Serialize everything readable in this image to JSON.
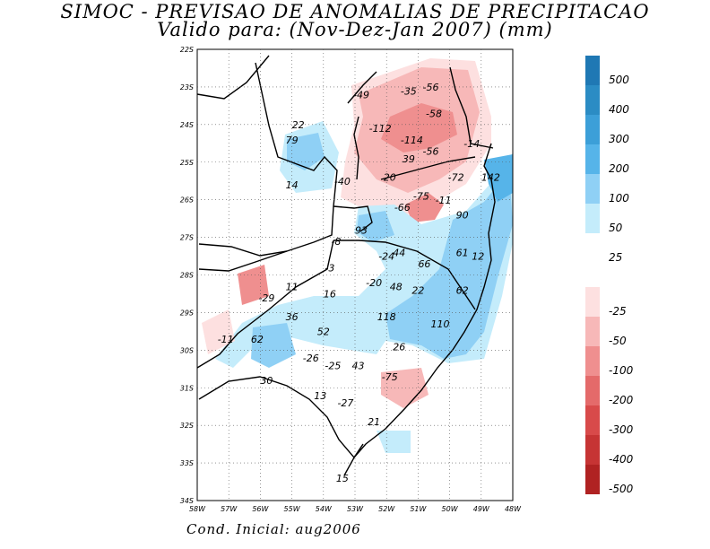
{
  "title_line1": "SIMOC - PREVISAO DE ANOMALIAS DE PRECIPITACAO",
  "title_line2": "Valido para: (Nov-Dez-Jan 2007) (mm)",
  "footer": "Cond. Inicial: aug2006",
  "axes": {
    "lat_ticks": [
      "22S",
      "23S",
      "24S",
      "25S",
      "26S",
      "27S",
      "28S",
      "29S",
      "30S",
      "31S",
      "32S",
      "33S",
      "34S"
    ],
    "lon_ticks": [
      "58W",
      "57W",
      "56W",
      "55W",
      "54W",
      "53W",
      "52W",
      "51W",
      "50W",
      "49W",
      "48W"
    ]
  },
  "legend": {
    "positive": [
      {
        "label": "500",
        "color": "#1f78b4"
      },
      {
        "label": "400",
        "color": "#2b8cc4"
      },
      {
        "label": "300",
        "color": "#3c9fd8"
      },
      {
        "label": "200",
        "color": "#56b4e9"
      },
      {
        "label": "100",
        "color": "#8fd0f5"
      },
      {
        "label": "50",
        "color": "#c4ecfb"
      },
      {
        "label": "25",
        "color": "#ffffff"
      }
    ],
    "negative": [
      {
        "label": "-25",
        "color": "#fde0e0"
      },
      {
        "label": "-50",
        "color": "#f7b8b8"
      },
      {
        "label": "-100",
        "color": "#ef8f8f"
      },
      {
        "label": "-200",
        "color": "#e46a6a"
      },
      {
        "label": "-300",
        "color": "#d84a4a"
      },
      {
        "label": "-400",
        "color": "#c63434"
      },
      {
        "label": "-500",
        "color": "#b02222"
      }
    ]
  },
  "anomaly_labels": [
    {
      "text": "-49",
      "lon": -52.8,
      "lat": -23.3
    },
    {
      "text": "-35",
      "lon": -51.3,
      "lat": -23.2
    },
    {
      "text": "-56",
      "lon": -50.6,
      "lat": -23.1
    },
    {
      "text": "-58",
      "lon": -50.5,
      "lat": -23.8
    },
    {
      "text": "-112",
      "lon": -52.2,
      "lat": -24.2
    },
    {
      "text": "-114",
      "lon": -51.2,
      "lat": -24.5
    },
    {
      "text": "-14",
      "lon": -49.3,
      "lat": -24.6
    },
    {
      "text": "22",
      "lon": -54.8,
      "lat": -24.1
    },
    {
      "text": "79",
      "lon": -55.0,
      "lat": -24.5
    },
    {
      "text": "-56",
      "lon": -50.6,
      "lat": -24.8
    },
    {
      "text": "39",
      "lon": -51.3,
      "lat": -25.0
    },
    {
      "text": "20",
      "lon": -51.9,
      "lat": -25.5
    },
    {
      "text": "-40",
      "lon": -53.4,
      "lat": -25.6
    },
    {
      "text": "-72",
      "lon": -49.8,
      "lat": -25.5
    },
    {
      "text": "142",
      "lon": -48.7,
      "lat": -25.5
    },
    {
      "text": "14",
      "lon": -55.0,
      "lat": -25.7
    },
    {
      "text": "-75",
      "lon": -50.9,
      "lat": -26.0
    },
    {
      "text": "-11",
      "lon": -50.2,
      "lat": -26.1
    },
    {
      "text": "-66",
      "lon": -51.5,
      "lat": -26.3
    },
    {
      "text": "90",
      "lon": -49.6,
      "lat": -26.5
    },
    {
      "text": "93",
      "lon": -52.8,
      "lat": -26.9
    },
    {
      "text": "-8",
      "lon": -53.6,
      "lat": -27.2
    },
    {
      "text": "-24",
      "lon": -52.0,
      "lat": -27.6
    },
    {
      "text": "44",
      "lon": -51.6,
      "lat": -27.5
    },
    {
      "text": "61",
      "lon": -49.6,
      "lat": -27.5
    },
    {
      "text": "12",
      "lon": -49.1,
      "lat": -27.6
    },
    {
      "text": "66",
      "lon": -50.8,
      "lat": -27.8
    },
    {
      "text": "-3",
      "lon": -53.8,
      "lat": -27.9
    },
    {
      "text": "-20",
      "lon": -52.4,
      "lat": -28.3
    },
    {
      "text": "48",
      "lon": -51.7,
      "lat": -28.4
    },
    {
      "text": "22",
      "lon": -51.0,
      "lat": -28.5
    },
    {
      "text": "62",
      "lon": -49.6,
      "lat": -28.5
    },
    {
      "text": "11",
      "lon": -55.0,
      "lat": -28.4
    },
    {
      "text": "16",
      "lon": -53.8,
      "lat": -28.6
    },
    {
      "text": "-29",
      "lon": -55.8,
      "lat": -28.7
    },
    {
      "text": "36",
      "lon": -55.0,
      "lat": -29.2
    },
    {
      "text": "118",
      "lon": -52.0,
      "lat": -29.2
    },
    {
      "text": "110",
      "lon": -50.3,
      "lat": -29.4
    },
    {
      "text": "52",
      "lon": -54.0,
      "lat": -29.6
    },
    {
      "text": "-11",
      "lon": -57.1,
      "lat": -29.8
    },
    {
      "text": "62",
      "lon": -56.1,
      "lat": -29.8
    },
    {
      "text": "26",
      "lon": -51.6,
      "lat": -30.0
    },
    {
      "text": "-26",
      "lon": -54.4,
      "lat": -30.3
    },
    {
      "text": "-25",
      "lon": -53.7,
      "lat": -30.5
    },
    {
      "text": "43",
      "lon": -52.9,
      "lat": -30.5
    },
    {
      "text": "-75",
      "lon": -51.9,
      "lat": -30.8
    },
    {
      "text": "30",
      "lon": -55.8,
      "lat": -30.9
    },
    {
      "text": "13",
      "lon": -54.1,
      "lat": -31.3
    },
    {
      "text": "-27",
      "lon": -53.3,
      "lat": -31.5
    },
    {
      "text": "21",
      "lon": -52.4,
      "lat": -32.0
    },
    {
      "text": "15",
      "lon": -53.4,
      "lat": -33.5
    }
  ]
}
